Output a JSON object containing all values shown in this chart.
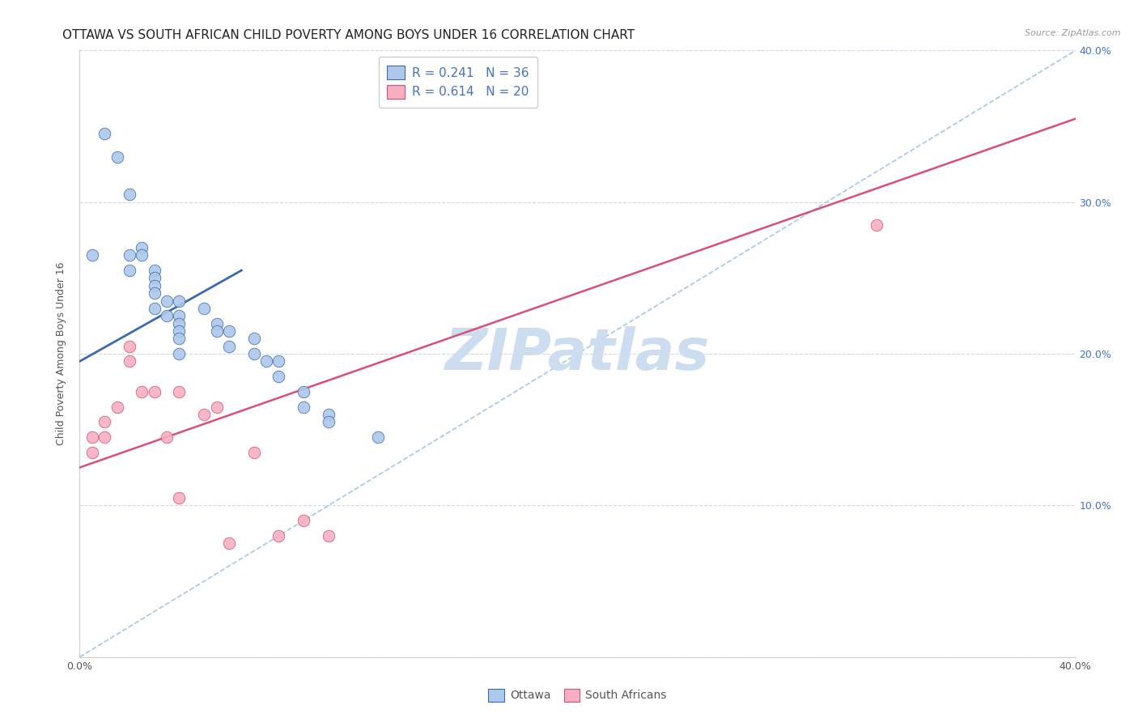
{
  "title": "OTTAWA VS SOUTH AFRICAN CHILD POVERTY AMONG BOYS UNDER 16 CORRELATION CHART",
  "source": "Source: ZipAtlas.com",
  "ylabel": "Child Poverty Among Boys Under 16",
  "xmin": 0.0,
  "xmax": 0.4,
  "ymin": 0.0,
  "ymax": 0.4,
  "ottawa_color": "#adc8e8",
  "sa_color": "#f5afc0",
  "ottawa_line_color": "#3a6ab4",
  "sa_line_color": "#d94f78",
  "diag_line_color": "#90b8e0",
  "watermark_color": "#ccddf0",
  "background_color": "#ffffff",
  "grid_color": "#c8d4e8",
  "title_fontsize": 11,
  "axis_label_fontsize": 9,
  "tick_fontsize": 9,
  "legend_fontsize": 11,
  "marker_size": 110,
  "ottawa_points_x": [
    0.005,
    0.01,
    0.015,
    0.02,
    0.02,
    0.02,
    0.025,
    0.025,
    0.03,
    0.03,
    0.03,
    0.03,
    0.03,
    0.035,
    0.035,
    0.04,
    0.04,
    0.04,
    0.04,
    0.04,
    0.04,
    0.05,
    0.055,
    0.055,
    0.06,
    0.06,
    0.07,
    0.07,
    0.075,
    0.08,
    0.08,
    0.09,
    0.09,
    0.1,
    0.1,
    0.12
  ],
  "ottawa_points_y": [
    0.265,
    0.345,
    0.33,
    0.305,
    0.265,
    0.255,
    0.27,
    0.265,
    0.255,
    0.25,
    0.245,
    0.24,
    0.23,
    0.235,
    0.225,
    0.235,
    0.225,
    0.22,
    0.215,
    0.21,
    0.2,
    0.23,
    0.22,
    0.215,
    0.215,
    0.205,
    0.21,
    0.2,
    0.195,
    0.195,
    0.185,
    0.175,
    0.165,
    0.16,
    0.155,
    0.145
  ],
  "sa_points_x": [
    0.005,
    0.005,
    0.01,
    0.01,
    0.015,
    0.02,
    0.02,
    0.025,
    0.03,
    0.035,
    0.04,
    0.04,
    0.05,
    0.055,
    0.06,
    0.07,
    0.08,
    0.09,
    0.1,
    0.32
  ],
  "sa_points_y": [
    0.145,
    0.135,
    0.155,
    0.145,
    0.165,
    0.205,
    0.195,
    0.175,
    0.175,
    0.145,
    0.175,
    0.105,
    0.16,
    0.165,
    0.075,
    0.135,
    0.08,
    0.09,
    0.08,
    0.285
  ],
  "ottawa_trendline_x0": 0.0,
  "ottawa_trendline_y0": 0.195,
  "ottawa_trendline_x1": 0.065,
  "ottawa_trendline_y1": 0.255,
  "sa_trendline_x0": 0.0,
  "sa_trendline_y0": 0.125,
  "sa_trendline_x1": 0.4,
  "sa_trendline_y1": 0.355,
  "legend_text_1": "R = 0.241   N = 36",
  "legend_text_2": "R = 0.614   N = 20",
  "legend_labels": [
    "Ottawa",
    "South Africans"
  ]
}
